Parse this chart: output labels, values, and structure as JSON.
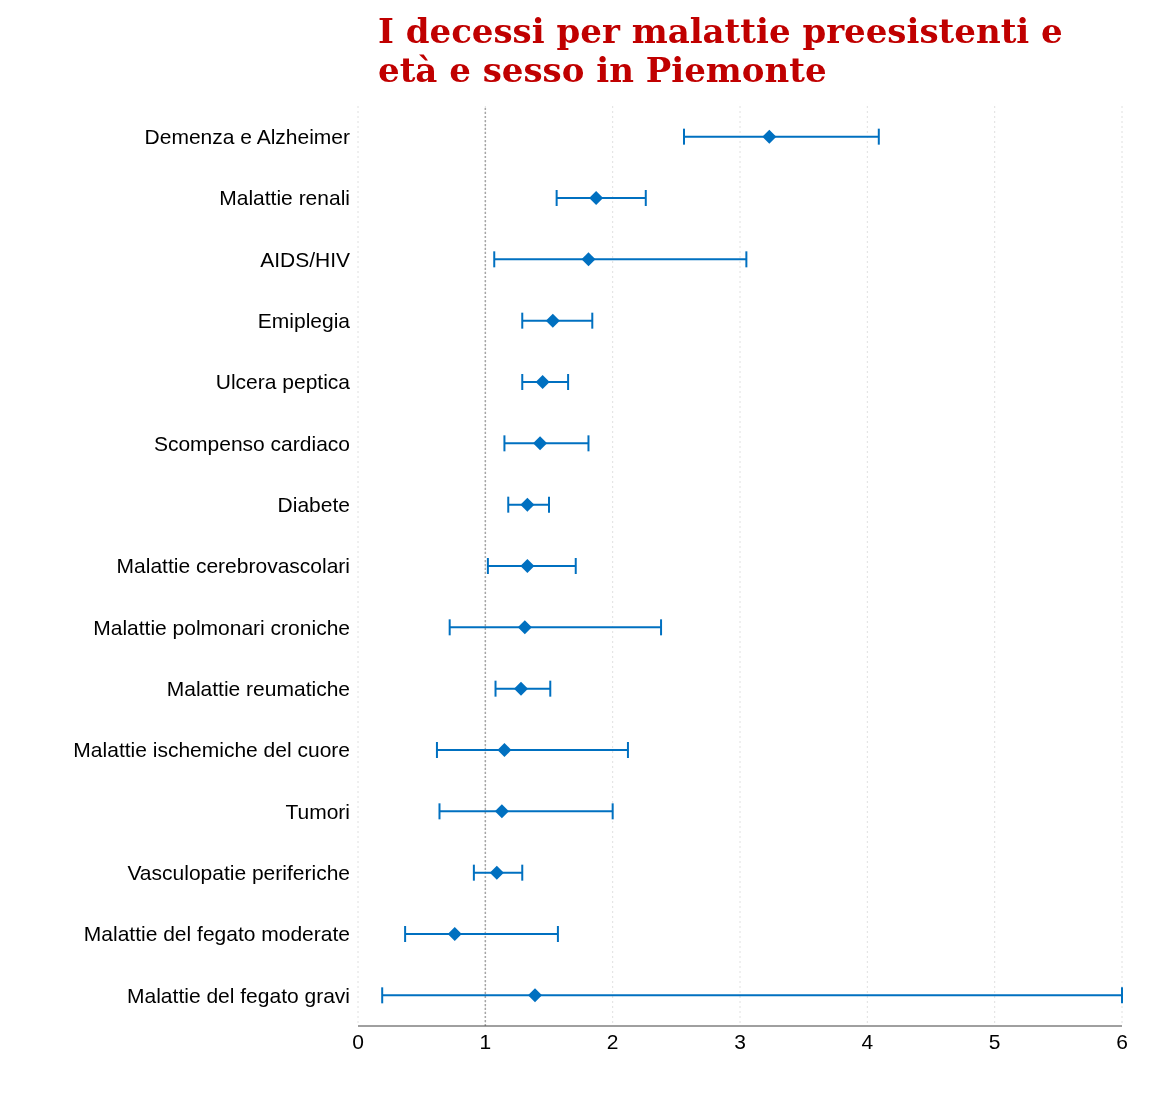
{
  "chart_data": {
    "type": "scatter",
    "title": "I decessi per malattie preesistenti e età e sesso in Piemonte",
    "categories": [
      "Demenza e Alzheimer",
      "Malattie renali",
      "AIDS/HIV",
      "Emiplegia",
      "Ulcera peptica",
      "Scompenso cardiaco",
      "Diabete",
      "Malattie cerebrovascolari",
      "Malattie polmonari croniche",
      "Malattie reumatiche",
      "Malattie ischemiche del cuore",
      "Tumori",
      "Vasculopatie periferiche",
      "Malattie del fegato moderate",
      "Malattie del fegato gravi"
    ],
    "orientation": "horizontal",
    "color": "#0070c0",
    "marker": "diamond",
    "values": [
      3.23,
      1.87,
      1.81,
      1.53,
      1.45,
      1.43,
      1.33,
      1.33,
      1.31,
      1.28,
      1.15,
      1.13,
      1.09,
      0.76,
      1.39
    ],
    "errors": [
      [
        2.56,
        4.09
      ],
      [
        1.56,
        2.26
      ],
      [
        1.07,
        3.05
      ],
      [
        1.29,
        1.84
      ],
      [
        1.29,
        1.65
      ],
      [
        1.15,
        1.81
      ],
      [
        1.18,
        1.5
      ],
      [
        1.02,
        1.71
      ],
      [
        0.72,
        2.38
      ],
      [
        1.08,
        1.51
      ],
      [
        0.62,
        2.12
      ],
      [
        0.64,
        2.0
      ],
      [
        0.91,
        1.29
      ],
      [
        0.37,
        1.57
      ],
      [
        0.19,
        6
      ]
    ],
    "xlim": [
      0,
      6
    ],
    "xticks": [
      0,
      1,
      2,
      3,
      4,
      5,
      6
    ],
    "grid": "x",
    "ref_lines": [
      {
        "axis": "x",
        "value": 1,
        "color": "#a6a6a6",
        "line_style": "dotted"
      }
    ]
  }
}
